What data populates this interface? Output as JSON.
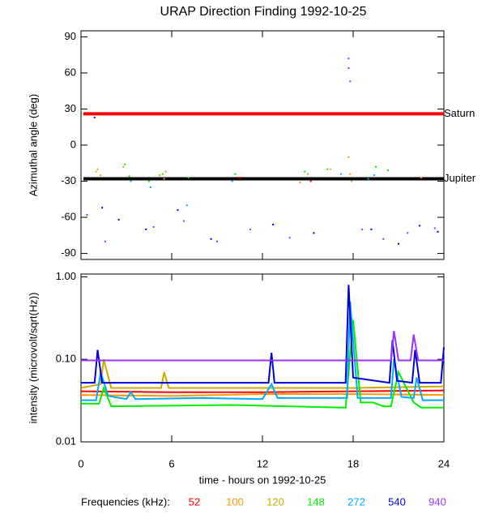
{
  "title": "URAP Direction Finding  1992-10-25",
  "legend_title": "Frequencies (kHz):",
  "chart_data": [
    {
      "type": "scatter",
      "ylabel": "Azimuthal angle (deg)",
      "xlim": [
        0,
        24
      ],
      "xticks": [
        0,
        6,
        12,
        18,
        24
      ],
      "ylim": [
        -95,
        95
      ],
      "yticks": [
        -90,
        -60,
        -30,
        0,
        30,
        60,
        90
      ],
      "reference_lines": [
        {
          "name": "Saturn",
          "value": 26,
          "color": "#ff0000"
        },
        {
          "name": "Jupiter",
          "value": -28,
          "color": "#000000"
        }
      ],
      "series": [
        {
          "color": "#ff0000",
          "x": [
            10.5,
            15.2
          ],
          "values": [
            -27,
            -30
          ]
        },
        {
          "color": "#ff9900",
          "x": [
            1,
            1.3,
            5.5,
            14.5,
            16.5,
            17.8,
            22.5
          ],
          "values": [
            -22,
            -25,
            -28,
            -31,
            -20,
            -24,
            -27
          ]
        },
        {
          "color": "#ccaa00",
          "x": [
            1.1,
            2.8,
            5.2,
            5.6,
            15,
            17.7,
            17.9
          ],
          "values": [
            -20,
            -18,
            -25,
            -22,
            -24,
            -10,
            -30
          ]
        },
        {
          "color": "#00ee00",
          "x": [
            2.9,
            3.2,
            4.5,
            5.4,
            7.1,
            10.2,
            14.8,
            16.3,
            19.5,
            20.3
          ],
          "values": [
            -16,
            -26,
            -30,
            -24,
            -27,
            -24,
            -22,
            -20,
            -18,
            -21
          ]
        },
        {
          "color": "#00aaff",
          "x": [
            3.3,
            4.6,
            7,
            10,
            17.2,
            19,
            19.4
          ],
          "values": [
            -30,
            -35,
            -50,
            -30,
            -24,
            -28,
            -25
          ]
        },
        {
          "color": "#0000dd",
          "x": [
            0.9,
            1.4,
            2.5,
            4.3,
            6.4,
            8.6,
            12.7,
            15.4,
            19.2,
            21,
            22.4,
            23.6
          ],
          "values": [
            23,
            -52,
            -62,
            -70,
            -54,
            -78,
            -66,
            -73,
            -70,
            -82,
            -67,
            -72
          ]
        },
        {
          "color": "#9933ff",
          "x": [
            0.4,
            1.6,
            4.8,
            6.8,
            9,
            11.2,
            13.8,
            17.7,
            17.7,
            17.8,
            18.6,
            20,
            21.6,
            23.4
          ],
          "values": [
            -58,
            -80,
            -68,
            -63,
            -80,
            -70,
            -77,
            72,
            64,
            53,
            -70,
            -78,
            -73,
            -69
          ]
        }
      ]
    },
    {
      "type": "line",
      "ylabel": "intensity (microvolt/sqrt(Hz))",
      "xlabel": "time - hours on 1992-10-25",
      "log_y": true,
      "xlim": [
        0,
        24
      ],
      "xticks": [
        0,
        6,
        12,
        18,
        24
      ],
      "ylim": [
        0.01,
        1.08
      ],
      "yticks": [
        0.01,
        {
          "value": 0.1,
          "label": "0.10"
        },
        {
          "value": 1,
          "label": "1.00"
        }
      ],
      "series": [
        {
          "name": "52",
          "color": "#ff0000",
          "x": [
            0,
            6,
            12,
            18,
            24
          ],
          "values": [
            0.041,
            0.04,
            0.04,
            0.041,
            0.042
          ]
        },
        {
          "name": "100",
          "color": "#ff9900",
          "x": [
            0,
            6,
            12,
            18,
            24
          ],
          "values": [
            0.037,
            0.036,
            0.038,
            0.038,
            0.037
          ]
        },
        {
          "name": "120",
          "color": "#ccaa00",
          "x": [
            0,
            1.3,
            1.5,
            2,
            5.3,
            5.5,
            5.8,
            12,
            18,
            24
          ],
          "values": [
            0.045,
            0.05,
            0.1,
            0.045,
            0.045,
            0.07,
            0.045,
            0.045,
            0.045,
            0.047
          ]
        },
        {
          "name": "148",
          "color": "#00ee00",
          "x": [
            0,
            1.2,
            1.5,
            2,
            10,
            17.5,
            18,
            18.5,
            19.3,
            20,
            20.5,
            21,
            22,
            22.5,
            24
          ],
          "values": [
            0.029,
            0.029,
            0.045,
            0.027,
            0.028,
            0.026,
            0.3,
            0.03,
            0.03,
            0.027,
            0.027,
            0.07,
            0.03,
            0.026,
            0.026
          ]
        },
        {
          "name": "272",
          "color": "#00aaff",
          "x": [
            0,
            1,
            1.3,
            1.8,
            3,
            3.3,
            3.6,
            8,
            12,
            12.6,
            13,
            17.6,
            17.8,
            18.3,
            20.5,
            20.7,
            21.2,
            22,
            22.2,
            22.6,
            24
          ],
          "values": [
            0.032,
            0.032,
            0.07,
            0.036,
            0.033,
            0.04,
            0.033,
            0.034,
            0.033,
            0.05,
            0.034,
            0.034,
            0.5,
            0.034,
            0.034,
            0.1,
            0.035,
            0.034,
            0.06,
            0.032,
            0.032
          ]
        },
        {
          "name": "540",
          "color": "#0000dd",
          "x": [
            0,
            0.9,
            1.1,
            1.4,
            12.4,
            12.6,
            12.8,
            17.5,
            17.7,
            18,
            20.4,
            20.6,
            20.9,
            21.9,
            22.1,
            22.4,
            23.8,
            24
          ],
          "values": [
            0.052,
            0.052,
            0.13,
            0.052,
            0.052,
            0.12,
            0.052,
            0.052,
            0.8,
            0.06,
            0.052,
            0.17,
            0.055,
            0.052,
            0.13,
            0.052,
            0.052,
            0.14
          ]
        },
        {
          "name": "940",
          "color": "#9933ff",
          "x": [
            0,
            6,
            12,
            17.5,
            18,
            20.5,
            20.7,
            21,
            21.8,
            22,
            22.3,
            24
          ],
          "values": [
            0.097,
            0.097,
            0.097,
            0.097,
            0.097,
            0.097,
            0.22,
            0.097,
            0.097,
            0.2,
            0.097,
            0.097
          ]
        }
      ]
    }
  ]
}
